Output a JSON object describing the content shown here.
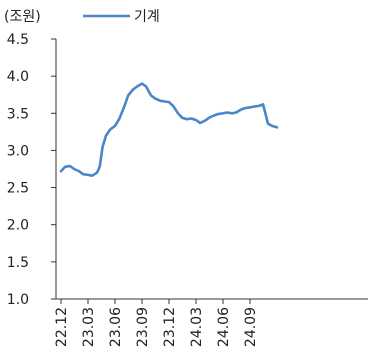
{
  "chart_data": {
    "type": "line",
    "unit_label": "(조원)",
    "grid": false,
    "legend_position": "top",
    "ylim": [
      1.0,
      4.5
    ],
    "y_ticks": [
      "4.5",
      "4.0",
      "3.5",
      "3.0",
      "2.5",
      "2.0",
      "1.5",
      "1.0"
    ],
    "x_ticks": [
      "22.12",
      "23.03",
      "23.06",
      "23.09",
      "23.12",
      "24.03",
      "24.06",
      "24.09"
    ],
    "series": [
      {
        "name": "기계",
        "color": "#4a86c8",
        "x": [
          "2022-12-01",
          "2022-12-15",
          "2023-01-01",
          "2023-01-15",
          "2023-02-01",
          "2023-02-15",
          "2023-03-01",
          "2023-03-15",
          "2023-04-01",
          "2023-04-10",
          "2023-04-20",
          "2023-05-01",
          "2023-05-15",
          "2023-06-01",
          "2023-06-15",
          "2023-07-01",
          "2023-07-15",
          "2023-08-01",
          "2023-08-15",
          "2023-09-01",
          "2023-09-15",
          "2023-10-01",
          "2023-10-15",
          "2023-11-01",
          "2023-11-15",
          "2023-12-01",
          "2023-12-15",
          "2024-01-01",
          "2024-01-15",
          "2024-02-01",
          "2024-02-15",
          "2024-03-01",
          "2024-03-15",
          "2024-04-01",
          "2024-04-15",
          "2024-05-01",
          "2024-05-15",
          "2024-06-01",
          "2024-06-15",
          "2024-07-01",
          "2024-07-15",
          "2024-08-01",
          "2024-08-15",
          "2024-09-01",
          "2024-09-15",
          "2024-10-01",
          "2024-10-15",
          "2024-11-01",
          "2024-11-15",
          "2024-12-01"
        ],
        "values": [
          2.72,
          2.78,
          2.79,
          2.75,
          2.72,
          2.68,
          2.67,
          2.66,
          2.7,
          2.78,
          3.05,
          3.2,
          3.28,
          3.33,
          3.42,
          3.58,
          3.74,
          3.82,
          3.86,
          3.9,
          3.86,
          3.74,
          3.7,
          3.67,
          3.66,
          3.65,
          3.6,
          3.5,
          3.44,
          3.42,
          3.43,
          3.41,
          3.37,
          3.4,
          3.44,
          3.47,
          3.49,
          3.5,
          3.51,
          3.5,
          3.51,
          3.55,
          3.57,
          3.58,
          3.59,
          3.6,
          3.62,
          3.36,
          3.33,
          3.31
        ]
      }
    ]
  }
}
